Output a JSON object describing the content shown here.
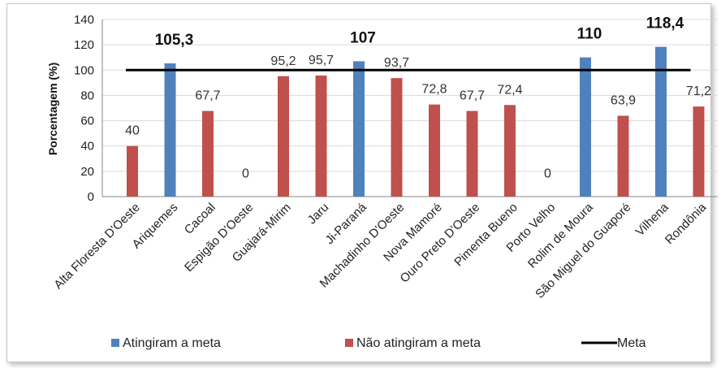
{
  "chart_data": {
    "type": "bar",
    "title": "",
    "xlabel": "",
    "ylabel": "Porcentagem (%)",
    "ylim": [
      0,
      140
    ],
    "yticks": [
      0,
      20,
      40,
      60,
      80,
      100,
      120,
      140
    ],
    "grid": true,
    "legend_position": "bottom",
    "categories": [
      "Alta Floresta D'Oeste",
      "Ariquemes",
      "Cacoal",
      "Espigão D'Oeste",
      "Guajará-Mirim",
      "Jaru",
      "Ji-Paraná",
      "Machadinho D'Oeste",
      "Nova Mamoré",
      "Ouro Preto D'Oeste",
      "Pimenta Bueno",
      "Porto Velho",
      "Rolim de Moura",
      "São Miguel do Guaporé",
      "Vilhena",
      "Rondônia"
    ],
    "series": [
      {
        "name": "Atingiram a meta",
        "color": "#4f81bd",
        "values": [
          null,
          105.3,
          null,
          null,
          null,
          null,
          107,
          null,
          null,
          null,
          null,
          null,
          110,
          null,
          118.4,
          null
        ]
      },
      {
        "name": "Não atingiram a meta",
        "color": "#c0504d",
        "values": [
          40,
          null,
          67.7,
          0,
          95.2,
          95.7,
          null,
          93.7,
          72.8,
          67.7,
          72.4,
          0,
          null,
          63.9,
          null,
          71.2
        ]
      }
    ],
    "data_labels": [
      "40",
      "105,3",
      "67,7",
      "0",
      "95,2",
      "95,7",
      "107",
      "93,7",
      "72,8",
      "67,7",
      "72,4",
      "0",
      "110",
      "63,9",
      "118,4",
      "71,2"
    ],
    "reference_line": {
      "name": "Meta",
      "value": 100,
      "color": "#000000"
    }
  }
}
